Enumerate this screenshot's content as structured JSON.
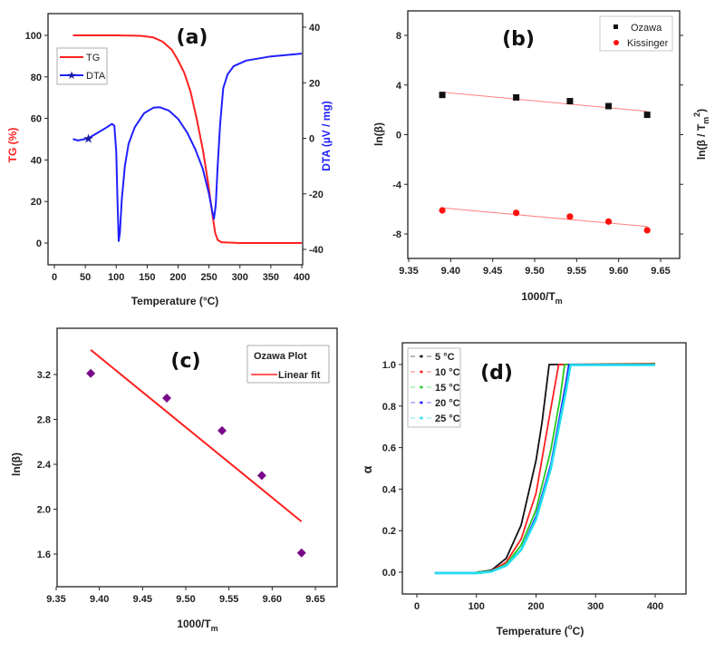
{
  "chart_data": [
    {
      "panel": "(a)",
      "type": "line",
      "xlabel": "Temperature (°C)",
      "ylabel": "TG (%)",
      "ylabel_right": "DTA (µV / mg)",
      "xlim": [
        -10,
        400
      ],
      "ylim": [
        -9,
        110
      ],
      "ylim_right": [
        -45,
        45
      ],
      "xticks": [
        0,
        50,
        100,
        150,
        200,
        250,
        300,
        350,
        400
      ],
      "yticks": [
        0,
        20,
        40,
        60,
        80,
        100
      ],
      "yticks_right": [
        -40,
        -20,
        0,
        20,
        40
      ],
      "legend": "top-left",
      "colors": {
        "axis_left": "#ff2020",
        "axis_right": "#2020ff"
      },
      "series": [
        {
          "name": "TG",
          "axis": "left",
          "color": "#ff2020",
          "marker": "none",
          "points": [
            [
              30,
              100
            ],
            [
              100,
              100
            ],
            [
              140,
              99.8
            ],
            [
              160,
              99
            ],
            [
              175,
              97
            ],
            [
              190,
              93
            ],
            [
              200,
              88
            ],
            [
              210,
              82
            ],
            [
              220,
              73
            ],
            [
              230,
              60
            ],
            [
              240,
              45
            ],
            [
              248,
              30
            ],
            [
              255,
              15
            ],
            [
              260,
              5
            ],
            [
              264,
              1.5
            ],
            [
              270,
              0.4
            ],
            [
              300,
              0
            ],
            [
              400,
              0
            ]
          ]
        },
        {
          "name": "DTA",
          "axis": "right",
          "color": "#2020ff",
          "marker": "star",
          "marker_points": [
            [
              55,
              0
            ]
          ],
          "points": [
            [
              30,
              -0.3
            ],
            [
              38,
              -0.8
            ],
            [
              45,
              -0.5
            ],
            [
              55,
              0
            ],
            [
              70,
              2
            ],
            [
              85,
              4
            ],
            [
              93,
              5.2
            ],
            [
              97,
              4.5
            ],
            [
              100,
              -5
            ],
            [
              102,
              -22
            ],
            [
              104,
              -37
            ],
            [
              106,
              -34
            ],
            [
              109,
              -22
            ],
            [
              114,
              -10
            ],
            [
              120,
              -2
            ],
            [
              130,
              4
            ],
            [
              145,
              9
            ],
            [
              160,
              11
            ],
            [
              170,
              11.2
            ],
            [
              185,
              10
            ],
            [
              200,
              7
            ],
            [
              215,
              2
            ],
            [
              228,
              -4
            ],
            [
              240,
              -11
            ],
            [
              250,
              -20
            ],
            [
              255,
              -26
            ],
            [
              258,
              -29
            ],
            [
              261,
              -24
            ],
            [
              264,
              -10
            ],
            [
              268,
              5
            ],
            [
              273,
              18
            ],
            [
              280,
              23
            ],
            [
              290,
              26
            ],
            [
              310,
              28
            ],
            [
              350,
              29.5
            ],
            [
              400,
              30.5
            ]
          ]
        }
      ]
    },
    {
      "panel": "(b)",
      "type": "scatter",
      "xlabel": "1000/T",
      "xlabel_sub": "m",
      "ylabel": "ln(β)",
      "ylabel_right": "ln(β / T",
      "ylabel_right_sub": "m",
      "ylabel_right_sup": "2",
      "ylabel_right_end": ")",
      "xlim": [
        9.35,
        9.68
      ],
      "ylim": [
        -10,
        10
      ],
      "xticks": [
        9.35,
        9.4,
        9.45,
        9.5,
        9.55,
        9.6,
        9.65
      ],
      "yticks": [
        -8,
        -4,
        0,
        4,
        8
      ],
      "legend": "top-right",
      "series": [
        {
          "name": "Ozawa",
          "color": "#111111",
          "marker": "square",
          "x": [
            9.39,
            9.478,
            9.542,
            9.588,
            9.634
          ],
          "y": [
            3.2,
            3.0,
            2.7,
            2.3,
            1.6
          ],
          "fit": [
            [
              9.39,
              3.42
            ],
            [
              9.634,
              1.88
            ]
          ],
          "fit_color": "#ff8080"
        },
        {
          "name": "Kissinger",
          "color": "#ff1010",
          "marker": "circle",
          "x": [
            9.39,
            9.478,
            9.542,
            9.588,
            9.634
          ],
          "y": [
            -6.1,
            -6.3,
            -6.6,
            -7.0,
            -7.7
          ],
          "fit": [
            [
              9.39,
              -5.9
            ],
            [
              9.634,
              -7.4
            ]
          ],
          "fit_color": "#ff8080"
        }
      ]
    },
    {
      "panel": "(c)",
      "type": "scatter",
      "xlabel": "1000/T",
      "xlabel_sub": "m",
      "ylabel": "ln(β)",
      "xlim": [
        9.35,
        9.68
      ],
      "ylim": [
        1.3,
        3.5
      ],
      "xticks": [
        9.35,
        9.4,
        9.45,
        9.5,
        9.55,
        9.6,
        9.65
      ],
      "yticks": [
        1.6,
        2.0,
        2.4,
        2.8,
        3.2
      ],
      "legend": "top-right",
      "legend_title": "Ozawa Plot",
      "series": [
        {
          "name": "Ozawa Plot",
          "color": "#7a0a8a",
          "marker": "diamond",
          "x": [
            9.39,
            9.478,
            9.542,
            9.588,
            9.634
          ],
          "y": [
            3.21,
            2.99,
            2.7,
            2.3,
            1.61
          ]
        },
        {
          "name": "Linear fit",
          "color": "#ff2020",
          "marker": "none",
          "points": [
            [
              9.39,
              3.42
            ],
            [
              9.634,
              1.89
            ]
          ]
        }
      ]
    },
    {
      "panel": "(d)",
      "type": "line",
      "xlabel": "Temperature (",
      "xlabel_sup": "o",
      "xlabel_end": "C)",
      "ylabel": "α",
      "xlim": [
        -25,
        450
      ],
      "ylim": [
        -0.1,
        1.05
      ],
      "xticks": [
        0,
        100,
        200,
        300,
        400
      ],
      "yticks": [
        0.0,
        0.2,
        0.4,
        0.6,
        0.8,
        1.0
      ],
      "legend": "top-left",
      "series": [
        {
          "name": "5 °C",
          "color": "#111111",
          "points": [
            [
              100,
              0
            ],
            [
              125,
              0.009
            ],
            [
              150,
              0.067
            ],
            [
              175,
              0.227
            ],
            [
              200,
              0.538
            ],
            [
              210,
              0.72
            ],
            [
              222,
              1
            ],
            [
              400,
              1
            ]
          ]
        },
        {
          "name": "10 °C",
          "color": "#ff2020",
          "points": [
            [
              100,
              0
            ],
            [
              125,
              0.006
            ],
            [
              150,
              0.048
            ],
            [
              175,
              0.16
            ],
            [
              200,
              0.38
            ],
            [
              225,
              0.79
            ],
            [
              238,
              1
            ],
            [
              400,
              1.005
            ]
          ]
        },
        {
          "name": "15 °C",
          "color": "#20cc20",
          "points": [
            [
              100,
              0
            ],
            [
              125,
              0.005
            ],
            [
              150,
              0.038
            ],
            [
              175,
              0.13
            ],
            [
              200,
              0.3
            ],
            [
              225,
              0.59
            ],
            [
              240,
              0.83
            ],
            [
              248,
              1
            ],
            [
              400,
              1.002
            ]
          ]
        },
        {
          "name": "20 °C",
          "color": "#2020ff",
          "points": [
            [
              30,
              -0.003
            ],
            [
              100,
              -0.003
            ],
            [
              125,
              0.004
            ],
            [
              150,
              0.034
            ],
            [
              175,
              0.11
            ],
            [
              200,
              0.27
            ],
            [
              225,
              0.52
            ],
            [
              250,
              0.91
            ],
            [
              255,
              1
            ],
            [
              400,
              1
            ]
          ]
        },
        {
          "name": "25 °C",
          "color": "#20e0f0",
          "points": [
            [
              30,
              -0.005
            ],
            [
              100,
              -0.005
            ],
            [
              125,
              0.003
            ],
            [
              150,
              0.032
            ],
            [
              175,
              0.108
            ],
            [
              200,
              0.254
            ],
            [
              225,
              0.5
            ],
            [
              250,
              0.87
            ],
            [
              258,
              0.998
            ],
            [
              400,
              0.998
            ]
          ]
        }
      ]
    }
  ]
}
